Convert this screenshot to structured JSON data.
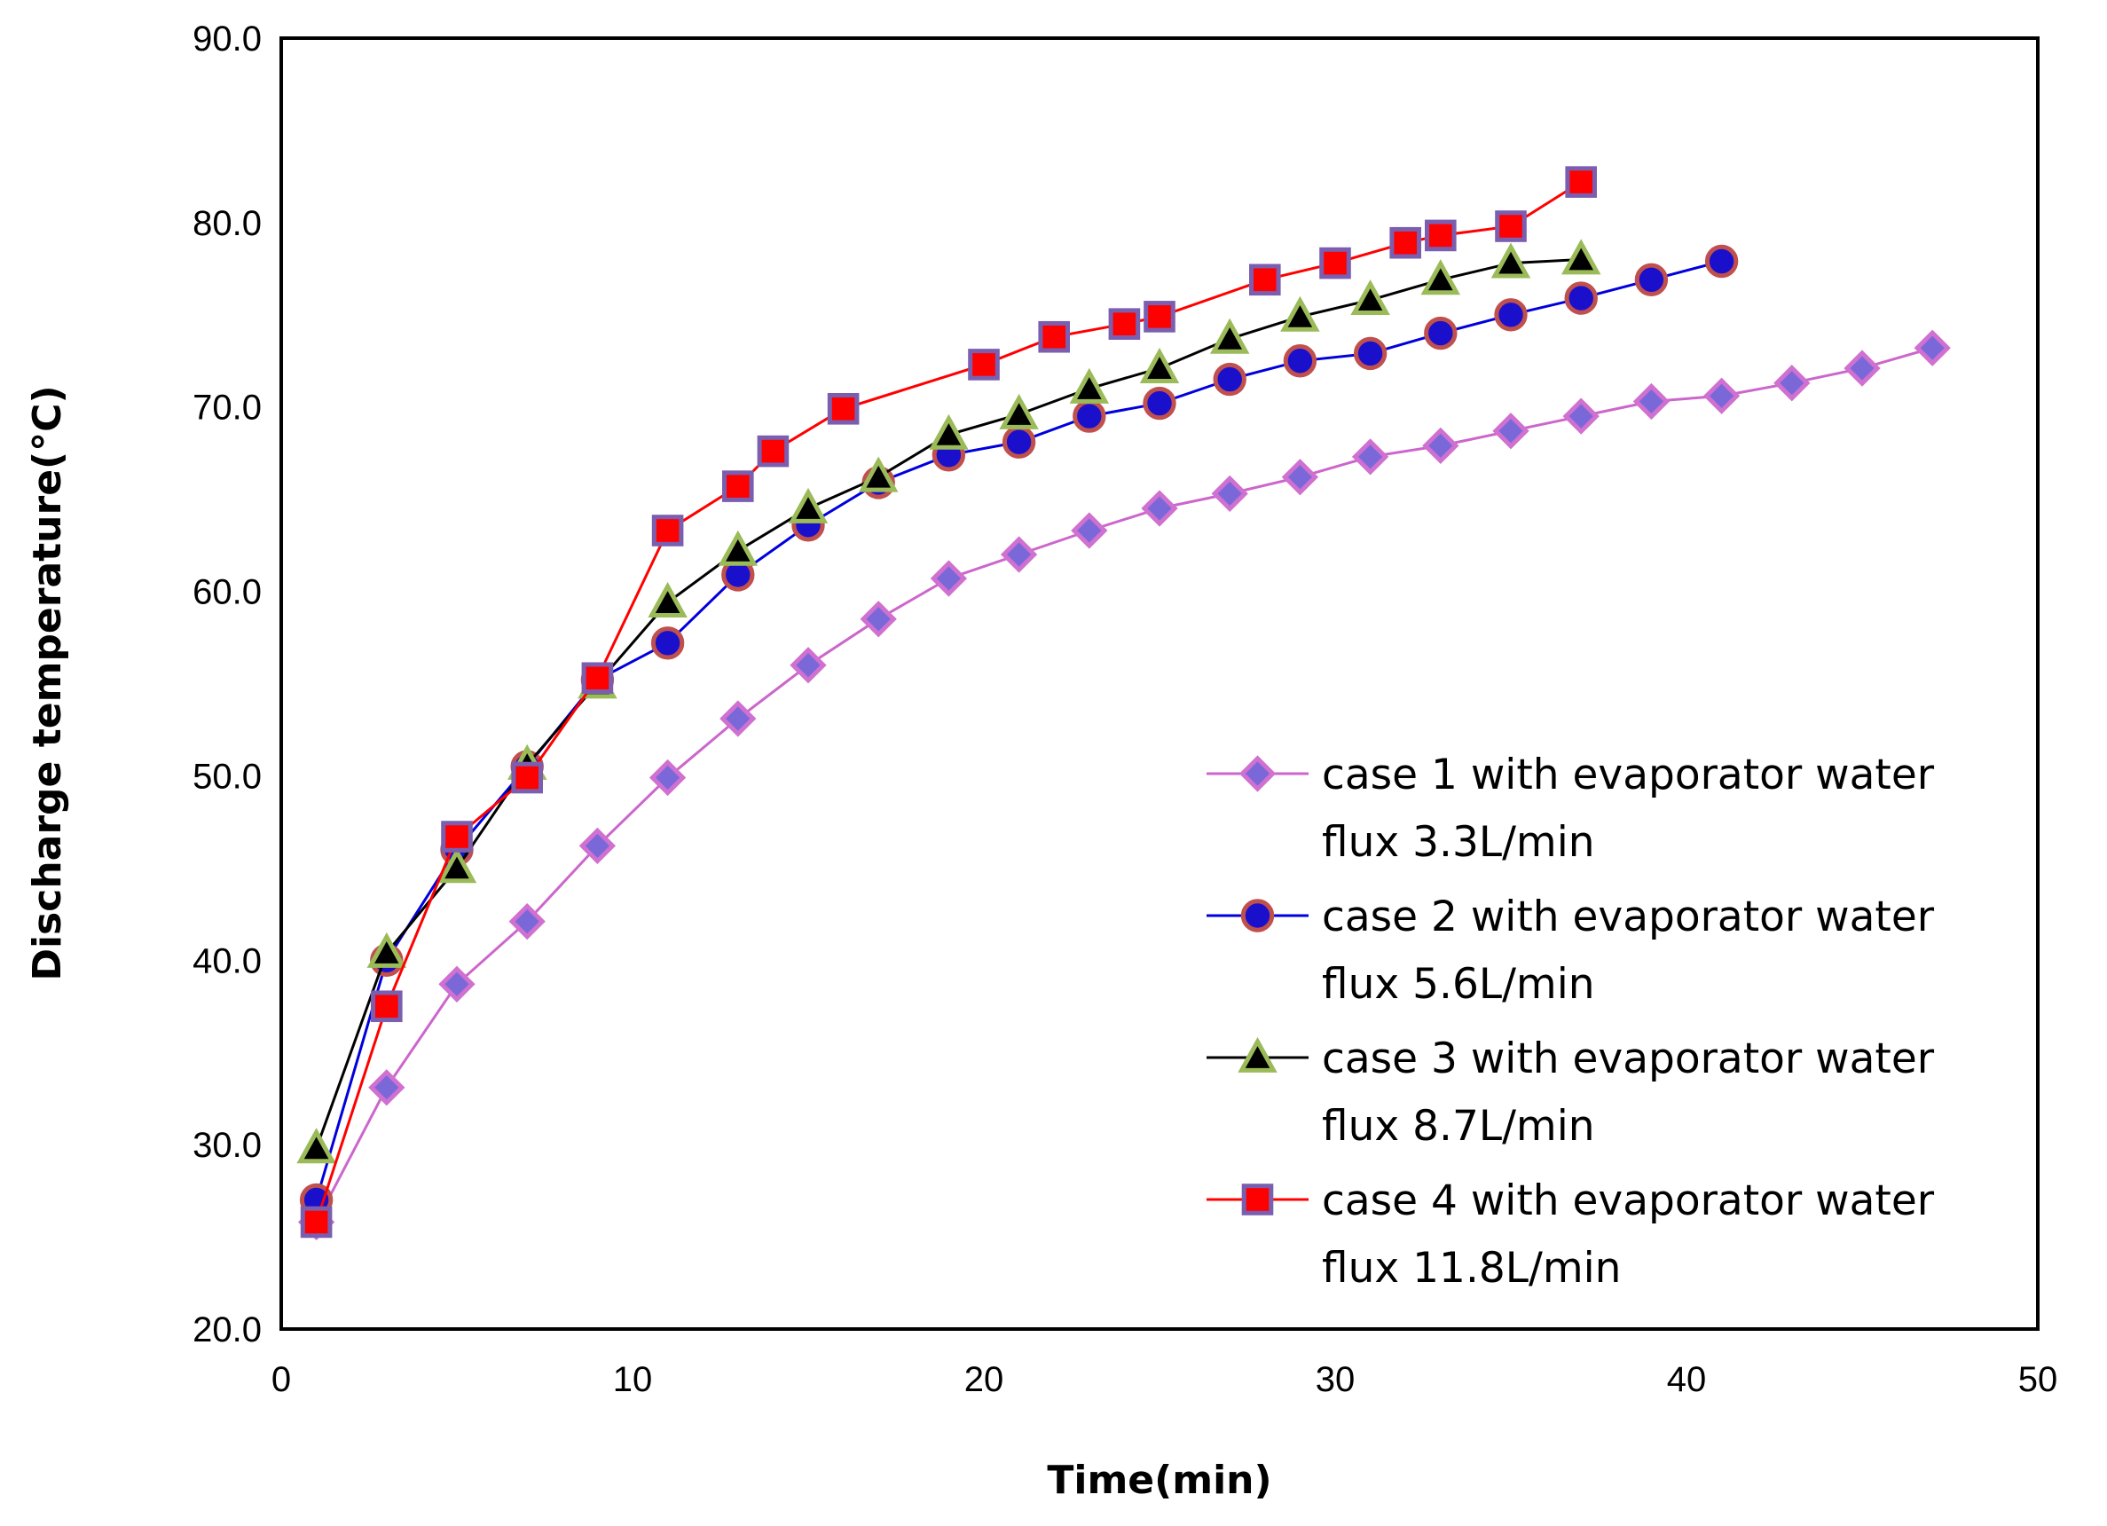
{
  "chart_data": {
    "type": "line",
    "title": "",
    "xlabel": "Time(min)",
    "ylabel": "Discharge temperature(°C)",
    "xlim": [
      0,
      50
    ],
    "ylim": [
      20,
      90
    ],
    "xticks": [
      0,
      10,
      20,
      30,
      40,
      50
    ],
    "yticks": [
      20,
      30,
      40,
      50,
      60,
      70,
      80,
      90
    ],
    "ytick_labels": [
      "20.0",
      "30.0",
      "40.0",
      "50.0",
      "60.0",
      "70.0",
      "80.0",
      "90.0"
    ],
    "grid": false,
    "legend_position": "center-right",
    "series": [
      {
        "name": "case 1 with evaporator water flux 3.3L/min",
        "legend_lines": [
          "case 1 with evaporator water",
          "flux 3.3L/min"
        ],
        "color": "#CC66CC",
        "marker": "diamond",
        "marker_fill": "#7B68D8",
        "marker_edge": "#D070D0",
        "x": [
          1,
          3,
          5,
          7,
          9,
          11,
          13,
          15,
          17,
          19,
          21,
          23,
          25,
          27,
          29,
          31,
          33,
          35,
          37,
          39,
          41,
          43,
          45,
          47
        ],
        "y": [
          25.8,
          33.1,
          38.7,
          42.1,
          46.2,
          49.9,
          53.1,
          56.0,
          58.5,
          60.7,
          62.0,
          63.3,
          64.5,
          65.3,
          66.2,
          67.3,
          67.9,
          68.7,
          69.5,
          70.3,
          70.6,
          71.3,
          72.1,
          73.2
        ]
      },
      {
        "name": "case 2 with evaporator water flux 5.6L/min",
        "legend_lines": [
          "case 2 with evaporator water",
          "flux 5.6L/min"
        ],
        "color": "#0000DD",
        "marker": "circle",
        "marker_fill": "#1A10CC",
        "marker_edge": "#C0504D",
        "x": [
          1,
          3,
          5,
          7,
          9,
          11,
          13,
          15,
          17,
          19,
          21,
          23,
          25,
          27,
          29,
          31,
          33,
          35,
          37,
          39,
          41
        ],
        "y": [
          27.0,
          40.0,
          46.0,
          50.5,
          55.2,
          57.2,
          60.9,
          63.6,
          65.9,
          67.4,
          68.1,
          69.5,
          70.2,
          71.5,
          72.5,
          72.9,
          74.0,
          75.0,
          75.9,
          76.9,
          77.9
        ]
      },
      {
        "name": "case 3 with evaporator water flux 8.7L/min",
        "legend_lines": [
          "case 3 with evaporator water",
          "flux 8.7L/min"
        ],
        "color": "#000000",
        "marker": "triangle",
        "marker_fill": "#000000",
        "marker_edge": "#9BBB59",
        "x": [
          1,
          3,
          5,
          7,
          9,
          11,
          13,
          15,
          17,
          19,
          21,
          23,
          25,
          27,
          29,
          31,
          33,
          35,
          37
        ],
        "y": [
          29.8,
          40.4,
          45.0,
          50.6,
          55.0,
          59.4,
          62.2,
          64.5,
          66.2,
          68.5,
          69.6,
          71.0,
          72.1,
          73.7,
          74.9,
          75.8,
          76.9,
          77.8,
          78.0
        ]
      },
      {
        "name": "case 4 with evaporator water flux 11.8L/min",
        "legend_lines": [
          "case 4 with evaporator water",
          "flux 11.8L/min"
        ],
        "color": "#FF0000",
        "marker": "square",
        "marker_fill": "#FF0000",
        "marker_edge": "#7A5FB0",
        "x": [
          1,
          3,
          5,
          7,
          9,
          11,
          13,
          14,
          16,
          20,
          22,
          24,
          25,
          28,
          30,
          32,
          33,
          35,
          37
        ],
        "y": [
          25.8,
          37.5,
          46.7,
          49.9,
          55.3,
          63.3,
          65.7,
          67.6,
          69.9,
          72.3,
          73.8,
          74.5,
          74.9,
          76.9,
          77.8,
          78.9,
          79.3,
          79.8,
          82.2
        ]
      }
    ]
  }
}
